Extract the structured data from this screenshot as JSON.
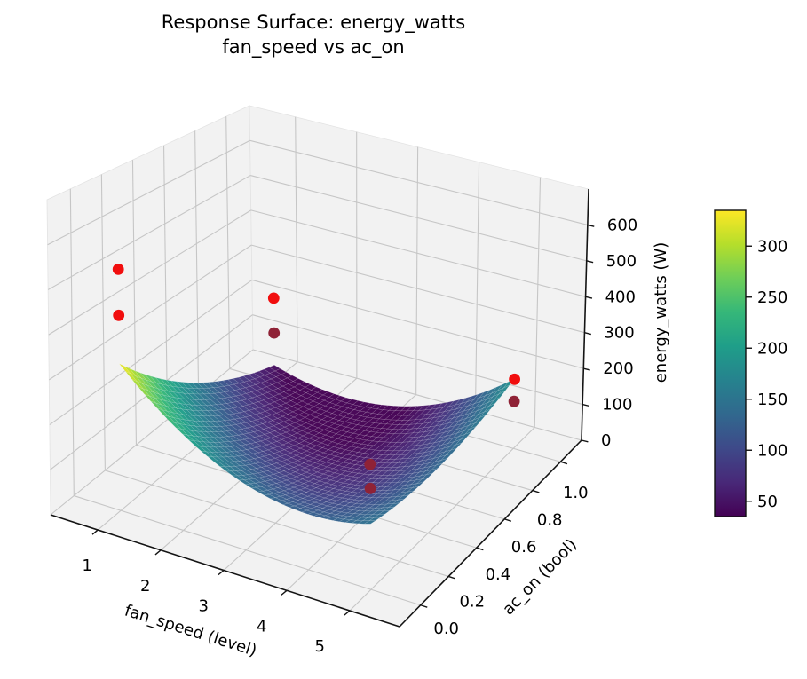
{
  "title": {
    "line1": "Response Surface: energy_watts",
    "line2": "fan_speed vs ac_on"
  },
  "chart_data": {
    "type": "surface3d",
    "x_axis": {
      "label": "fan_speed (level)",
      "tick_labels": [
        "1",
        "2",
        "3",
        "4",
        "5"
      ],
      "tick_values": [
        1,
        2,
        3,
        4,
        5
      ],
      "range": [
        0.25,
        5.79
      ]
    },
    "y_axis": {
      "label": "ac_on (bool)",
      "tick_labels": [
        "0.0",
        "0.2",
        "0.4",
        "0.6",
        "0.8",
        "1.0"
      ],
      "tick_values": [
        0,
        0.2,
        0.4,
        0.6,
        0.8,
        1.0
      ],
      "range": [
        -0.15,
        1.15
      ]
    },
    "z_axis": {
      "label": "energy_watts (W)",
      "tick_labels": [
        "0",
        "100",
        "200",
        "300",
        "400",
        "500",
        "600"
      ],
      "tick_values": [
        0,
        100,
        200,
        300,
        400,
        500,
        600
      ],
      "range": [
        0,
        700
      ]
    },
    "surface": {
      "description": "quadratic response-surface fit z = b0 + b1*x + b2*y + b11*x^2 + b22*y^2 + b12*x*y",
      "coefficients": {
        "b0": 496.9,
        "b1": -185.0,
        "b2": -500.0,
        "b11": 23.1,
        "b22": 127.5,
        "b12": 82.5
      },
      "x_domain": [
        1,
        5
      ],
      "y_domain": [
        0,
        1
      ],
      "grid_resolution": [
        40,
        30
      ],
      "colormap": "viridis",
      "color_value_range": [
        35,
        335
      ]
    },
    "scatter": {
      "marker_color": "#f10e0e",
      "occluded_marker_color": "#8f2236",
      "points": [
        {
          "fan_speed": 1,
          "ac_on": 0,
          "energy_watts": 550,
          "occluded": false
        },
        {
          "fan_speed": 1,
          "ac_on": 0,
          "energy_watts": 445,
          "occluded": false
        },
        {
          "fan_speed": 1,
          "ac_on": 1,
          "energy_watts": 230,
          "occluded": false
        },
        {
          "fan_speed": 1,
          "ac_on": 1,
          "energy_watts": 134,
          "occluded": true
        },
        {
          "fan_speed": 5,
          "ac_on": 1,
          "energy_watts": 188,
          "occluded": false
        },
        {
          "fan_speed": 5,
          "ac_on": 1,
          "energy_watts": 128,
          "occluded": true
        },
        {
          "fan_speed": 5,
          "ac_on": 0,
          "energy_watts": 285,
          "occluded": true
        },
        {
          "fan_speed": 5,
          "ac_on": 0,
          "energy_watts": 230,
          "occluded": true
        }
      ]
    },
    "colorbar": {
      "tick_labels": [
        "50",
        "100",
        "150",
        "200",
        "250",
        "300"
      ],
      "tick_values": [
        50,
        100,
        150,
        200,
        250,
        300
      ],
      "value_range": [
        35,
        335
      ]
    },
    "style": {
      "pane_color": "#f2f2f2",
      "grid_color": "#c6c6c6",
      "spine_color": "#141414"
    }
  }
}
